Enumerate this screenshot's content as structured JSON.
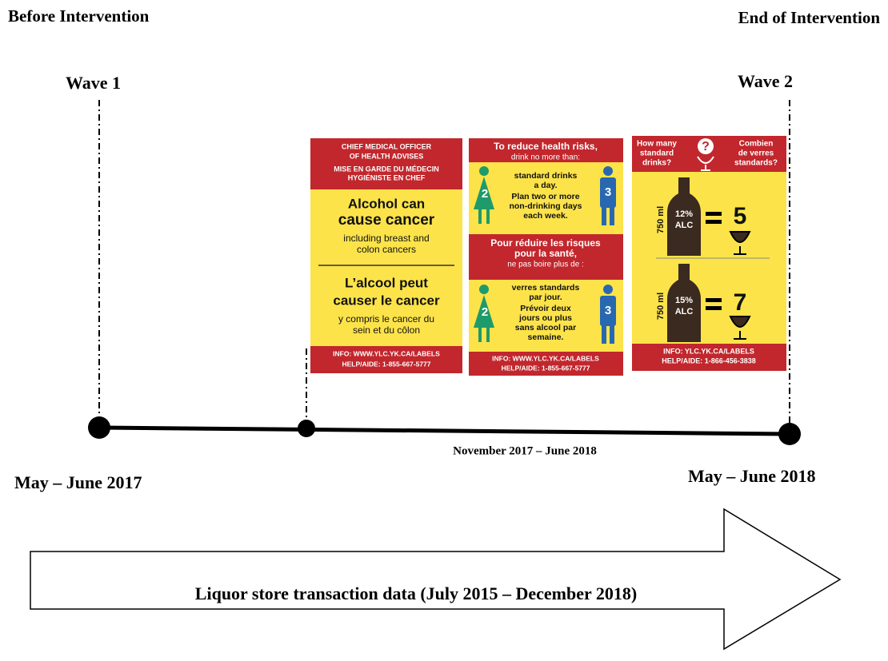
{
  "header": {
    "left": "Before Intervention",
    "right": "End of Intervention"
  },
  "waves": [
    {
      "label": "Wave 1",
      "date": "May – June 2017"
    },
    {
      "label": "Wave 2",
      "date": "May – June 2018"
    }
  ],
  "intervention_period": "November 2017 – June 2018",
  "labels": [
    {
      "header": [
        "CHIEF MEDICAL OFFICER",
        "OF HEALTH ADVISES",
        "MISE EN GARDE DU MÉDECIN",
        "HYGIÉNISTE EN CHEF"
      ],
      "english": {
        "title": [
          "Alcohol can",
          "cause cancer"
        ],
        "detail": [
          "including breast and",
          "colon cancers"
        ]
      },
      "french": {
        "title": [
          "L’alcool peut",
          "causer le cancer"
        ],
        "detail": [
          "y compris le cancer du",
          "sein et du côlon"
        ]
      },
      "footer": [
        "INFO: WWW.YLC.YK.CA/LABELS",
        "HELP/AIDE: 1-855-667-5777"
      ]
    },
    {
      "english": {
        "heading": [
          "To reduce health risks,",
          "drink no more than:"
        ],
        "women": "2",
        "men": "3",
        "text": [
          "standard drinks",
          "a day.",
          "Plan two or more",
          "non-drinking days",
          "each week."
        ]
      },
      "french": {
        "heading": [
          "Pour réduire les risques",
          "pour la santé,",
          "ne pas boire plus de :"
        ],
        "women": "2",
        "men": "3",
        "text": [
          "verres standards",
          "par jour.",
          "Prévoir deux",
          "jours ou plus",
          "sans alcool par",
          "semaine."
        ]
      },
      "footer": [
        "INFO: WWW.YLC.YK.CA/LABELS",
        "HELP/AIDE: 1-855-667-5777"
      ]
    },
    {
      "header": {
        "english": [
          "How many",
          "standard",
          "drinks?"
        ],
        "icon": "?",
        "french": [
          "Combien",
          "de verres",
          "standards?"
        ]
      },
      "bottles": [
        {
          "volume": "750 ml",
          "alc": [
            "12%",
            "ALC"
          ],
          "drinks": "5"
        },
        {
          "volume": "750 ml",
          "alc": [
            "15%",
            "ALC"
          ],
          "drinks": "7"
        }
      ],
      "footer": [
        "INFO: YLC.YK.CA/LABELS",
        "HELP/AIDE: 1-866-456-3838"
      ]
    }
  ],
  "arrow": "Liquor store transaction data (July 2015 – December 2018)"
}
